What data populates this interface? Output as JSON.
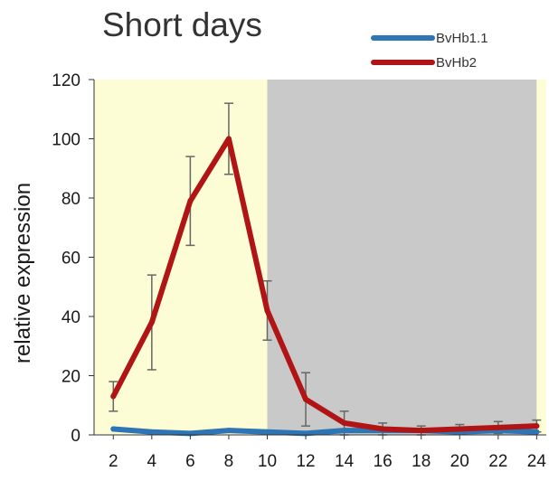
{
  "chart_data": {
    "type": "line",
    "title": "Short days",
    "xlabel": "",
    "ylabel": "relative expression",
    "x": [
      2,
      4,
      6,
      8,
      10,
      12,
      14,
      16,
      18,
      20,
      22,
      24
    ],
    "xticks": [
      "2",
      "4",
      "6",
      "8",
      "10",
      "12",
      "14",
      "16",
      "18",
      "20",
      "22",
      "24"
    ],
    "yticks": [
      "0",
      "20",
      "40",
      "60",
      "80",
      "100",
      "120"
    ],
    "xlim": [
      1,
      24.5
    ],
    "ylim": [
      0,
      120
    ],
    "grid": false,
    "legend": "top-right",
    "background_regions": [
      {
        "from": 1,
        "to": 10,
        "color": "#fcfcd5"
      },
      {
        "from": 10,
        "to": 24,
        "color": "#c9c9c9"
      },
      {
        "from": 24,
        "to": 24.5,
        "color": "#fcfcd5"
      }
    ],
    "series": [
      {
        "name": "BvHb1.1",
        "color": "#2e75b6",
        "values": [
          2,
          1,
          0.5,
          1.5,
          1,
          0.5,
          1.5,
          1.5,
          1.5,
          1,
          1.5,
          1
        ]
      },
      {
        "name": "BvHb2",
        "color": "#b01414",
        "values": [
          13,
          38,
          79,
          100,
          42,
          12,
          4,
          2,
          1.5,
          2,
          2.5,
          3
        ],
        "error": [
          5,
          16,
          15,
          12,
          10,
          9,
          4,
          2,
          1.5,
          1.5,
          2,
          2
        ]
      }
    ]
  }
}
